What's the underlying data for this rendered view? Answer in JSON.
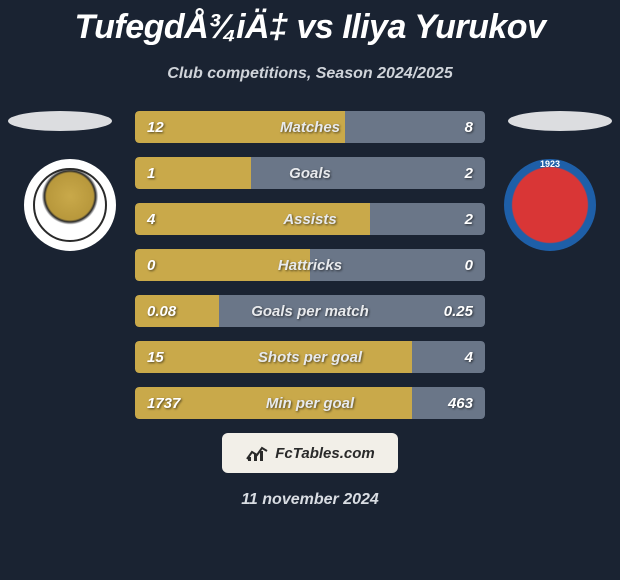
{
  "title": "TufegdÅ¾iÄ‡ vs Iliya Yurukov",
  "subtitle": "Club competitions, Season 2024/2025",
  "footer_date": "11 november 2024",
  "brand_label": "FcTables.com",
  "colors": {
    "left_bar": "#c9a94a",
    "right_bar": "#6a7688",
    "row_bg": "#2a3442",
    "page_bg": "#1a2332"
  },
  "stats": [
    {
      "label": "Matches",
      "left_val": "12",
      "right_val": "8",
      "left_pct": 60,
      "right_pct": 40
    },
    {
      "label": "Goals",
      "left_val": "1",
      "right_val": "2",
      "left_pct": 33,
      "right_pct": 67
    },
    {
      "label": "Assists",
      "left_val": "4",
      "right_val": "2",
      "left_pct": 67,
      "right_pct": 33
    },
    {
      "label": "Hattricks",
      "left_val": "0",
      "right_val": "0",
      "left_pct": 50,
      "right_pct": 50
    },
    {
      "label": "Goals per match",
      "left_val": "0.08",
      "right_val": "0.25",
      "left_pct": 24,
      "right_pct": 76
    },
    {
      "label": "Shots per goal",
      "left_val": "15",
      "right_val": "4",
      "left_pct": 79,
      "right_pct": 21
    },
    {
      "label": "Min per goal",
      "left_val": "1737",
      "right_val": "463",
      "left_pct": 79,
      "right_pct": 21
    }
  ]
}
